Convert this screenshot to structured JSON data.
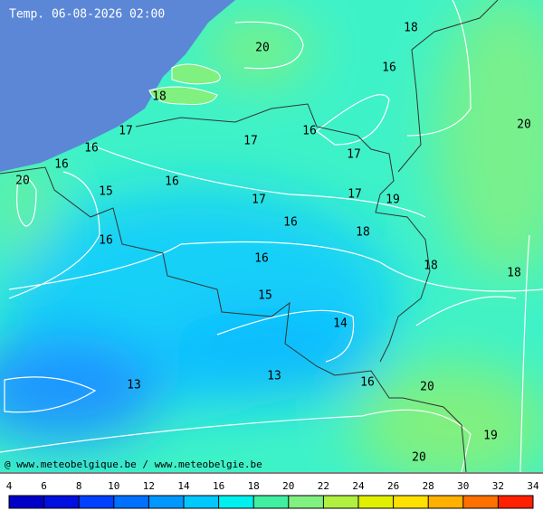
{
  "map": {
    "title": "Temp. 06-08-2026 02:00",
    "copyright": "@ www.meteobelgique.be / www.meteobelgie.be",
    "contour_labels": [
      18,
      20,
      16,
      18,
      20,
      17,
      16,
      17,
      16,
      17,
      16,
      20,
      16,
      15,
      17,
      17,
      19,
      16,
      18,
      16,
      16,
      18,
      18,
      15,
      14,
      13,
      16,
      13,
      20,
      19,
      20
    ],
    "colorbar": {
      "ticks": [
        4,
        6,
        8,
        10,
        12,
        14,
        16,
        18,
        20,
        22,
        24,
        26,
        28,
        30,
        32,
        34
      ],
      "colors": [
        "#0000c8",
        "#0010e0",
        "#0040ff",
        "#0070ff",
        "#0098ff",
        "#00c8ff",
        "#00f0f0",
        "#40f0a0",
        "#80f080",
        "#b0f040",
        "#e0f000",
        "#ffe000",
        "#ffb000",
        "#ff7000",
        "#ff2000"
      ]
    }
  }
}
